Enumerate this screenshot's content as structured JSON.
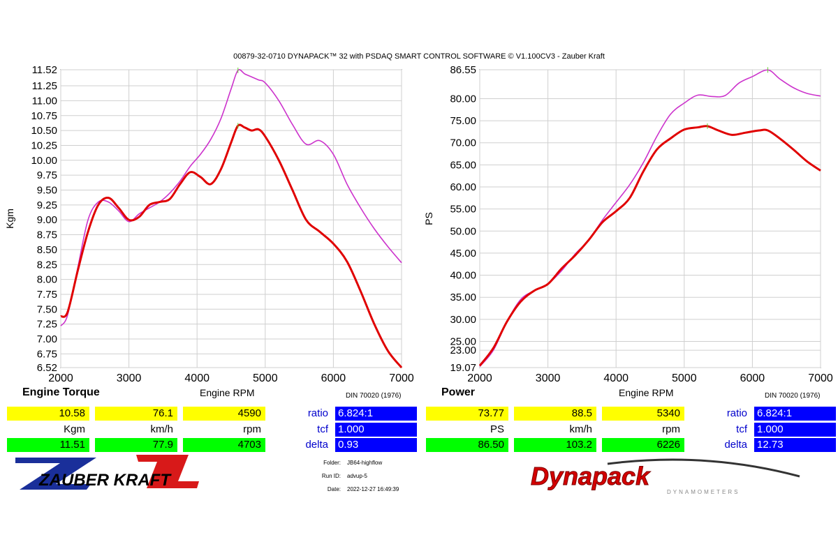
{
  "header": {
    "title": "00879-32-0710 DYNAPACK™ 32 with PSDAQ SMART CONTROL SOFTWARE © V1.100CV3 - Zauber Kraft"
  },
  "colors": {
    "red_curve": "#e00000",
    "magenta_curve": "#cc33cc",
    "yellow": "#ffff00",
    "green": "#00ff00",
    "blue": "#0000ff",
    "grid": "#cfcfcf"
  },
  "left_panel": {
    "title": "Engine Torque",
    "xlabel": "Engine RPM",
    "ylabel": "Kgm",
    "din": "DIN 70020 (1976)",
    "readouts": {
      "row1": [
        "10.58",
        "76.1",
        "4590"
      ],
      "row2": [
        "Kgm",
        "km/h",
        "rpm"
      ],
      "row3": [
        "11.51",
        "77.9",
        "4703"
      ]
    },
    "params": [
      {
        "label": "ratio",
        "value": "6.824:1"
      },
      {
        "label": "tcf",
        "value": "1.000"
      },
      {
        "label": "delta",
        "value": "0.93"
      }
    ]
  },
  "right_panel": {
    "title": "Power",
    "xlabel": "Engine RPM",
    "ylabel": "PS",
    "din": "DIN 70020 (1976)",
    "readouts": {
      "row1": [
        "73.77",
        "88.5",
        "5340"
      ],
      "row2": [
        "PS",
        "km/h",
        "rpm"
      ],
      "row3": [
        "86.50",
        "103.2",
        "6226"
      ]
    },
    "params": [
      {
        "label": "ratio",
        "value": "6.824:1"
      },
      {
        "label": "tcf",
        "value": "1.000"
      },
      {
        "label": "delta",
        "value": "12.73"
      }
    ]
  },
  "run_info": {
    "folder_label": "Folder:",
    "folder": "JB64-highflow",
    "run_label": "Run ID:",
    "run": "advup-5",
    "date_label": "Date:",
    "date": "2022-12-27 16:49:39"
  },
  "logos": {
    "left_brand": "ZAUBER KRAFT",
    "left_mark": "ZK",
    "right_brand": "Dynapack",
    "right_sub": "DYNAMOMETERS"
  },
  "chart_data": [
    {
      "type": "line",
      "ylabel": "Kgm",
      "xlabel": "Engine RPM",
      "xlim": [
        2000,
        7000
      ],
      "ylim": [
        6.52,
        11.52
      ],
      "xticks": [
        2000,
        3000,
        4000,
        5000,
        6000,
        7000
      ],
      "yticks": [
        "11.52",
        "11.25",
        "11.00",
        "10.75",
        "10.50",
        "10.25",
        "10.00",
        "9.75",
        "9.50",
        "9.25",
        "9.00",
        "8.75",
        "8.50",
        "8.25",
        "8.00",
        "7.75",
        "7.50",
        "7.25",
        "7.00",
        "6.75",
        "6.52"
      ],
      "grid": true,
      "series": [
        {
          "color": "red",
          "x": [
            2000,
            2100,
            2250,
            2400,
            2550,
            2700,
            2850,
            3000,
            3150,
            3300,
            3450,
            3600,
            3750,
            3900,
            4050,
            4200,
            4350,
            4500,
            4600,
            4700,
            4800,
            4900,
            5000,
            5200,
            5400,
            5600,
            5800,
            6000,
            6200,
            6400,
            6600,
            6800,
            7000
          ],
          "y": [
            7.38,
            7.45,
            8.15,
            8.8,
            9.25,
            9.37,
            9.2,
            9.0,
            9.05,
            9.25,
            9.3,
            9.35,
            9.6,
            9.8,
            9.72,
            9.6,
            9.85,
            10.3,
            10.58,
            10.55,
            10.5,
            10.52,
            10.4,
            10.0,
            9.5,
            9.0,
            8.8,
            8.6,
            8.3,
            7.8,
            7.25,
            6.8,
            6.52
          ]
        },
        {
          "color": "magenta",
          "x": [
            2000,
            2100,
            2250,
            2400,
            2550,
            2700,
            2850,
            3000,
            3150,
            3300,
            3450,
            3600,
            3750,
            3900,
            4050,
            4200,
            4350,
            4500,
            4600,
            4700,
            4800,
            4900,
            5000,
            5200,
            5400,
            5600,
            5800,
            6000,
            6200,
            6400,
            6600,
            6800,
            7000
          ],
          "y": [
            7.22,
            7.4,
            8.2,
            9.0,
            9.3,
            9.3,
            9.15,
            8.97,
            9.1,
            9.2,
            9.3,
            9.45,
            9.65,
            9.9,
            10.1,
            10.35,
            10.7,
            11.2,
            11.51,
            11.45,
            11.4,
            11.35,
            11.3,
            11.0,
            10.6,
            10.27,
            10.33,
            10.1,
            9.6,
            9.2,
            8.85,
            8.55,
            8.28
          ]
        }
      ]
    },
    {
      "type": "line",
      "ylabel": "PS",
      "xlabel": "Engine RPM",
      "xlim": [
        2000,
        7000
      ],
      "ylim": [
        19.07,
        86.55
      ],
      "xticks": [
        2000,
        3000,
        4000,
        5000,
        6000,
        7000
      ],
      "yticks": [
        "86.55",
        "80.00",
        "75.00",
        "70.00",
        "65.00",
        "60.00",
        "55.00",
        "50.00",
        "45.00",
        "40.00",
        "35.00",
        "30.00",
        "25.00",
        "23.00",
        "19.07"
      ],
      "grid": true,
      "series": [
        {
          "color": "red",
          "x": [
            2000,
            2200,
            2400,
            2600,
            2800,
            3000,
            3200,
            3400,
            3600,
            3800,
            4000,
            4200,
            4400,
            4600,
            4800,
            5000,
            5200,
            5340,
            5500,
            5700,
            5900,
            6100,
            6226,
            6400,
            6600,
            6800,
            7000
          ],
          "y": [
            19.5,
            23.5,
            29.5,
            34.0,
            36.5,
            38.0,
            41.5,
            44.5,
            48.0,
            52.0,
            54.5,
            57.5,
            63.5,
            68.5,
            71.0,
            73.0,
            73.5,
            73.77,
            72.8,
            71.8,
            72.3,
            72.8,
            72.8,
            71.0,
            68.5,
            65.8,
            63.7
          ]
        },
        {
          "color": "magenta",
          "x": [
            2000,
            2200,
            2400,
            2600,
            2800,
            3000,
            3200,
            3400,
            3600,
            3800,
            4000,
            4200,
            4400,
            4600,
            4800,
            5000,
            5200,
            5400,
            5600,
            5800,
            6000,
            6226,
            6400,
            6600,
            6800,
            7000
          ],
          "y": [
            19.3,
            23.0,
            29.5,
            34.5,
            36.5,
            38.0,
            41.0,
            44.8,
            48.0,
            52.5,
            56.5,
            60.5,
            65.5,
            71.5,
            76.5,
            79.0,
            80.8,
            80.5,
            80.7,
            83.5,
            85.0,
            86.5,
            84.5,
            82.5,
            81.2,
            80.6
          ]
        }
      ]
    }
  ]
}
